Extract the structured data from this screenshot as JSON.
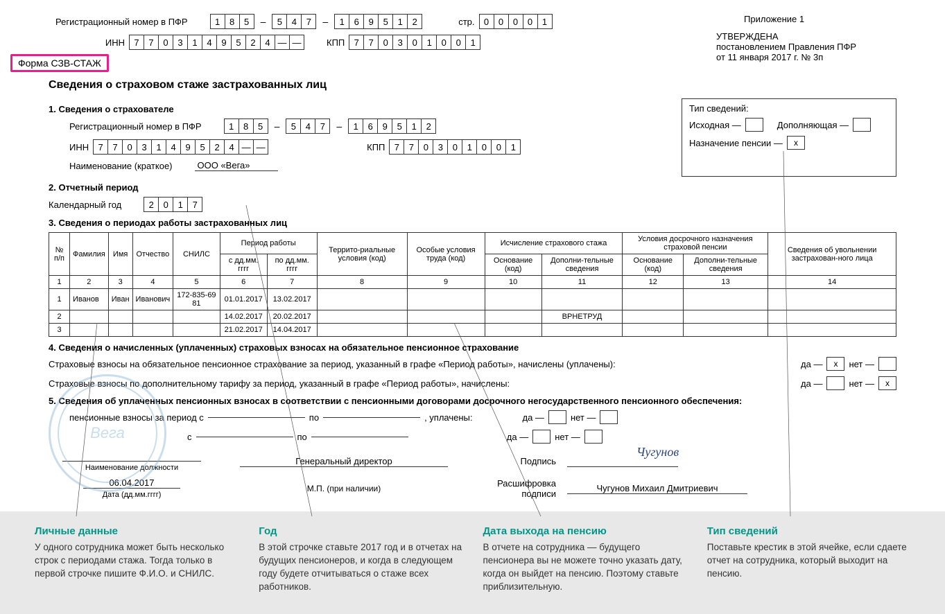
{
  "header": {
    "reg_label": "Регистрационный номер в ПФР",
    "reg": [
      "1",
      "8",
      "5",
      "5",
      "4",
      "7",
      "1",
      "6",
      "9",
      "5",
      "1",
      "2"
    ],
    "page_label": "стр.",
    "page": [
      "0",
      "0",
      "0",
      "0",
      "1"
    ],
    "inn_label": "ИНН",
    "inn": [
      "7",
      "7",
      "0",
      "3",
      "1",
      "4",
      "9",
      "5",
      "2",
      "4",
      "—",
      "—"
    ],
    "kpp_label": "КПП",
    "kpp": [
      "7",
      "7",
      "0",
      "3",
      "0",
      "1",
      "0",
      "0",
      "1"
    ],
    "form_name": "Форма СЗВ-СТАЖ",
    "appendix": "Приложение 1",
    "approved": "УТВЕРЖДЕНА",
    "approved2": "постановлением Правления ПФР",
    "approved3": "от 11 января 2017 г. № 3п"
  },
  "title": "Сведения о страховом стаже застрахованных лиц",
  "s1": {
    "h": "1. Сведения о страхователе",
    "reg_label": "Регистрационный номер в ПФР",
    "reg": [
      "1",
      "8",
      "5",
      "5",
      "4",
      "7",
      "1",
      "6",
      "9",
      "5",
      "1",
      "2"
    ],
    "inn_label": "ИНН",
    "inn": [
      "7",
      "7",
      "0",
      "3",
      "1",
      "4",
      "9",
      "5",
      "2",
      "4",
      "—",
      "—"
    ],
    "kpp_label": "КПП",
    "kpp": [
      "7",
      "7",
      "0",
      "3",
      "0",
      "1",
      "0",
      "0",
      "1"
    ],
    "name_label": "Наименование (краткое)",
    "name": "ООО «Вега»"
  },
  "typebox": {
    "title": "Тип сведений:",
    "opt1": "Исходная —",
    "opt2": "Дополняющая —",
    "opt3": "Назначение пенсии —",
    "val3": "x"
  },
  "s2": {
    "h": "2. Отчетный период",
    "year_label": "Календарный год",
    "year": [
      "2",
      "0",
      "1",
      "7"
    ]
  },
  "s3": {
    "h": "3. Сведения о периодах работы застрахованных лиц",
    "cols": {
      "n": "№ п/п",
      "fam": "Фамилия",
      "name": "Имя",
      "otch": "Отчество",
      "snils": "СНИЛС",
      "period": "Период работы",
      "from": "с дд.мм. гггг",
      "to": "по дд.мм. гггг",
      "terr": "Террито-риальные условия (код)",
      "spec": "Особые условия труда (код)",
      "stazh": "Исчисление страхового стажа",
      "basis": "Основание (код)",
      "extra": "Дополни-тельные сведения",
      "early": "Условия досрочного назначения страховой пенсии",
      "dismiss": "Сведения об увольнении застрахован-ного лица"
    },
    "numrow": [
      "1",
      "2",
      "3",
      "4",
      "5",
      "6",
      "7",
      "8",
      "9",
      "10",
      "11",
      "12",
      "13",
      "14"
    ],
    "rows": [
      {
        "n": "1",
        "fam": "Иванов",
        "name": "Иван",
        "otch": "Иванович",
        "snils": "172-835-69 81",
        "from": "01.01.2017",
        "to": "13.02.2017",
        "extra": ""
      },
      {
        "n": "2",
        "fam": "",
        "name": "",
        "otch": "",
        "snils": "",
        "from": "14.02.2017",
        "to": "20.02.2017",
        "extra": "ВРНЕТРУД"
      },
      {
        "n": "3",
        "fam": "",
        "name": "",
        "otch": "",
        "snils": "",
        "from": "21.02.2017",
        "to": "14.04.2017",
        "extra": ""
      }
    ]
  },
  "s4": {
    "h": "4. Сведения о начисленных (уплаченных) страховых взносах на обязательное пенсионное страхование",
    "line1": "Страховые взносы на обязательное пенсионное страхование за период, указанный в графе «Период работы», начислены (уплачены):",
    "line2": "Страховые взносы по дополнительному тарифу за период, указанный в графе «Период работы», начислены:",
    "yes": "да —",
    "no": "нет —",
    "x": "х"
  },
  "s5": {
    "h": "5. Сведения об уплаченных пенсионных взносах в соответствии с пенсионными договорами досрочного негосударственного пенсионного обеспечения:",
    "line1a": "пенсионные взносы за период с",
    "po": "по",
    "upl": ", уплачены:",
    "line2a": "с",
    "pos_label": "Наименование должности",
    "pos": "Генеральный директор",
    "sign_label": "Подпись",
    "sig": "Чугунов",
    "decode_label": "Расшифровка подписи",
    "decode": "Чугунов Михаил Дмитриевич",
    "date": "06.04.2017",
    "date_label": "Дата (дд.мм.гггг)",
    "mp": "М.П. (при наличии)"
  },
  "callouts": [
    {
      "title": "Личные данные",
      "text": "У одного сотрудника может быть несколько строк с периодами стажа. Тогда только в первой строчке пишите Ф.И.О. и СНИЛС."
    },
    {
      "title": "Год",
      "text": "В этой строчке ставьте 2017 год и в отчетах на будущих пенсионеров, и когда в следующем году будете отчитываться о стаже всех работников."
    },
    {
      "title": "Дата выхода на пенсию",
      "text": "В отчете на сотрудника — будущего пенсионера вы не можете точно указать дату, когда он выйдет на пенсию. Поэтому ставьте приблизительную."
    },
    {
      "title": "Тип сведений",
      "text": "Поставьте крестик в этой ячейке, если сдаете отчет на сотрудника, который выходит на пенсию."
    }
  ]
}
